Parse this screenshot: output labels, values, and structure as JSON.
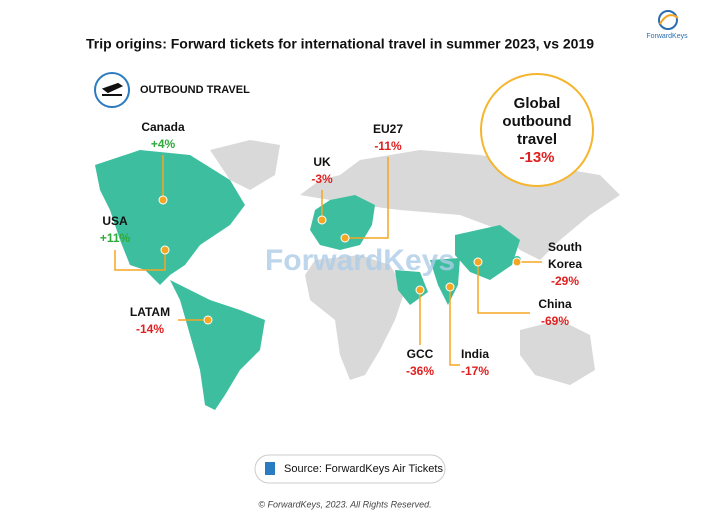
{
  "header": {
    "title": "Trip origins: Forward tickets for international travel in summer 2023, vs 2019",
    "logo": "ForwardKeys",
    "badge": "OUTBOUND TRAVEL"
  },
  "watermark": "ForwardKeys",
  "global": {
    "lines": [
      "Global",
      "outbound",
      "travel"
    ],
    "change": "-13%",
    "color": "#e02020"
  },
  "regions": [
    {
      "name_lines": [
        "Canada"
      ],
      "change": "+4%",
      "color": "#2eaa3a"
    },
    {
      "name_lines": [
        "USA"
      ],
      "change": "+11%",
      "color": "#2eaa3a"
    },
    {
      "name_lines": [
        "UK"
      ],
      "change": "-3%",
      "color": "#e02020"
    },
    {
      "name_lines": [
        "EU27"
      ],
      "change": "-11%",
      "color": "#e02020"
    },
    {
      "name_lines": [
        "LATAM"
      ],
      "change": "-14%",
      "color": "#e02020"
    },
    {
      "name_lines": [
        "GCC"
      ],
      "change": "-36%",
      "color": "#e02020"
    },
    {
      "name_lines": [
        "India"
      ],
      "change": "-17%",
      "color": "#e02020"
    },
    {
      "name_lines": [
        "China"
      ],
      "change": "-69%",
      "color": "#e02020"
    },
    {
      "name_lines": [
        "South",
        "Korea"
      ],
      "change": "-29%",
      "color": "#e02020"
    }
  ],
  "footer": {
    "source": "Source: ForwardKeys Air Tickets",
    "copyright": "© ForwardKeys, 2023. All Rights Reserved."
  }
}
